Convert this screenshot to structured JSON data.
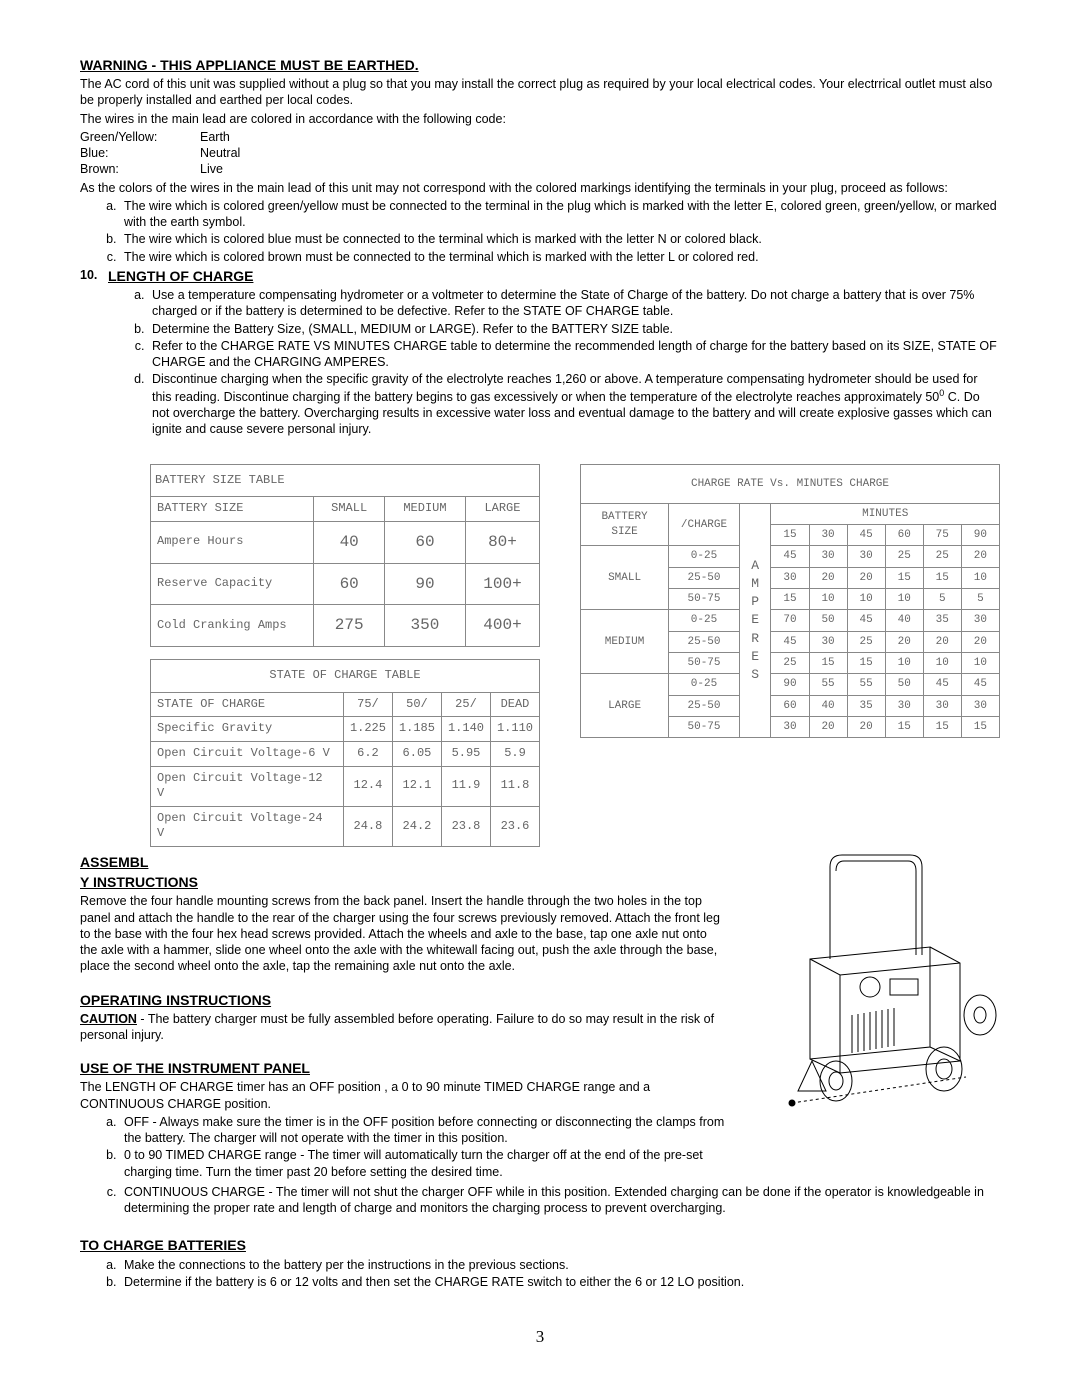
{
  "warning": {
    "heading": "WARNING - THIS APPLIANCE MUST BE EARTHED.",
    "p1": "The AC cord of this unit was supplied without a plug so that you may install the correct plug as required by your local electrical codes.  Your electrrical outlet must also be properly installed and earthed per local codes.",
    "p2": "The wires in the main lead are colored in accordance with the following code:",
    "wires": [
      {
        "k": "Green/Yellow:",
        "v": "Earth"
      },
      {
        "k": "Blue:",
        "v": "Neutral"
      },
      {
        "k": "Brown:",
        "v": "Live"
      }
    ],
    "p3": "As the colors of the wires in the main lead of this unit may not correspond with the colored markings identifying the terminals in your plug, proceed as follows:",
    "items": [
      "The wire which is colored green/yellow must be connected to the terminal in the plug which is marked with the letter E, colored green, green/yellow, or marked with the earth symbol.",
      "The wire which is colored blue must be connected to the terminal which is marked with the letter N or colored black.",
      "The wire which is colored brown must be connected to the terminal which is marked with the letter L or colored red."
    ]
  },
  "length": {
    "num": "10.",
    "heading": "LENGTH OF CHARGE",
    "items": [
      "Use a temperature compensating hydrometer or a voltmeter to determine the State of Charge of the battery.  Do not charge a battery that is over 75% charged or if the battery is determined to be defective.  Refer to the STATE OF CHARGE table.",
      "Determine the Battery Size, (SMALL, MEDIUM or LARGE).  Refer to the BATTERY SIZE table.",
      "Refer to the CHARGE RATE VS MINUTES CHARGE table to determine the recommended length of charge for the battery based on its SIZE, STATE OF CHARGE and the CHARGING AMPERES."
    ],
    "item_d_pre": "Discontinue charging when the specific gravity of the electrolyte reaches 1,260 or above.  A temperature compensating hydrometer should be used for this reading.  Discontinue charging if the battery begins to gas excessively or when the temperature of the electrolyte reaches approximately 50",
    "item_d_sup": "0",
    "item_d_post": " C.  Do not overcharge the  battery.  Overcharging results in excessive water loss and eventual damage to the battery and will create explosive gasses which can ignite and cause severe personal injury."
  },
  "battery_table": {
    "title": "BATTERY SIZE TABLE",
    "headers": [
      "BATTERY SIZE",
      "SMALL",
      "MEDIUM",
      "LARGE"
    ],
    "rows": [
      [
        "Ampere Hours",
        "40",
        "60",
        "80+"
      ],
      [
        "Reserve Capacity",
        "60",
        "90",
        "100+"
      ],
      [
        "Cold Cranking Amps",
        "275",
        "350",
        "400+"
      ]
    ]
  },
  "state_table": {
    "title": "STATE OF CHARGE TABLE",
    "headers": [
      "STATE OF CHARGE",
      "75/",
      "50/",
      "25/",
      "DEAD"
    ],
    "rows": [
      [
        "Specific Gravity",
        "1.225",
        "1.185",
        "1.140",
        "1.110"
      ],
      [
        "Open Circuit Voltage-6 V",
        "6.2",
        "6.05",
        "5.95",
        "5.9"
      ],
      [
        "Open Circuit Voltage-12 V",
        "12.4",
        "12.1",
        "11.9",
        "11.8"
      ],
      [
        "Open Circuit Voltage-24 V",
        "24.8",
        "24.2",
        "23.8",
        "23.6"
      ]
    ]
  },
  "charge_table": {
    "title": "CHARGE RATE Vs. MINUTES CHARGE",
    "col_battery": "BATTERY SIZE",
    "col_charge": "/CHARGE",
    "col_minutes": "MINUTES",
    "min_headers": [
      "15",
      "30",
      "45",
      "60",
      "75",
      "90"
    ],
    "amperes_label": "A\nM\nP\nE\nR\nE\nS",
    "sections": [
      {
        "size": "SMALL",
        "rows": [
          {
            "c": "0-25",
            "v": [
              "45",
              "30",
              "30",
              "25",
              "25",
              "20"
            ]
          },
          {
            "c": "25-50",
            "v": [
              "30",
              "20",
              "20",
              "15",
              "15",
              "10"
            ]
          },
          {
            "c": "50-75",
            "v": [
              "15",
              "10",
              "10",
              "10",
              "5",
              "5"
            ]
          }
        ]
      },
      {
        "size": "MEDIUM",
        "rows": [
          {
            "c": "0-25",
            "v": [
              "70",
              "50",
              "45",
              "40",
              "35",
              "30"
            ]
          },
          {
            "c": "25-50",
            "v": [
              "45",
              "30",
              "25",
              "20",
              "20",
              "20"
            ]
          },
          {
            "c": "50-75",
            "v": [
              "25",
              "15",
              "15",
              "10",
              "10",
              "10"
            ]
          }
        ]
      },
      {
        "size": "LARGE",
        "rows": [
          {
            "c": "0-25",
            "v": [
              "90",
              "55",
              "55",
              "50",
              "45",
              "45"
            ]
          },
          {
            "c": "25-50",
            "v": [
              "60",
              "40",
              "35",
              "30",
              "30",
              "30"
            ]
          },
          {
            "c": "50-75",
            "v": [
              "30",
              "20",
              "20",
              "15",
              "15",
              "15"
            ]
          }
        ]
      }
    ]
  },
  "assembly": {
    "heading1": "ASSEMBL",
    "heading2": "Y INSTRUCTIONS",
    "body": "Remove the four handle mounting screws from the back panel.  Insert the handle through the two holes in the top panel and attach the handle to the rear of the charger using the four screws previously removed.  Attach the front leg to the base with the four hex head screws provided.  Attach the wheels and axle to the base, tap one axle nut onto the axle with a hammer, slide one wheel onto the axle with the whitewall facing out, push the axle through the base, place the second wheel onto the axle, tap the remaining axle nut onto the axle."
  },
  "operating": {
    "heading": "OPERATING INSTRUCTIONS",
    "caution_label": "CAUTION",
    "caution_body": " - The battery charger must be fully assembled before operating.  Failure to do so may result in the risk of personal injury."
  },
  "instrument": {
    "heading": "USE OF THE INSTRUMENT PANEL",
    "p1": "The LENGTH OF CHARGE timer has an OFF position , a 0 to 90 minute TIMED CHARGE range and a CONTINUOUS CHARGE position.",
    "items": [
      "OFF - Always make sure the timer is in the OFF position before connecting or disconnecting the clamps from the battery.  The charger will not operate with the timer in this position.",
      "0 to 90 TIMED CHARGE range - The timer will automatically turn the charger off at the end of the pre-set charging time.  Turn the timer past 20 before setting the desired time.",
      "CONTINUOUS CHARGE - The timer will not shut the charger OFF while in this position.  Extended charging can be done if the operator is knowledgeable in determining the proper rate and length of charge and monitors the charging process to prevent overcharging."
    ]
  },
  "charge_batteries": {
    "heading": "TO CHARGE BATTERIES",
    "items": [
      "Make the connections to the battery per the instructions in the previous sections.",
      "Determine if the battery is 6 or 12 volts and then set the CHARGE RATE switch to either the 6 or 12 LO position."
    ]
  },
  "page_number": "3"
}
